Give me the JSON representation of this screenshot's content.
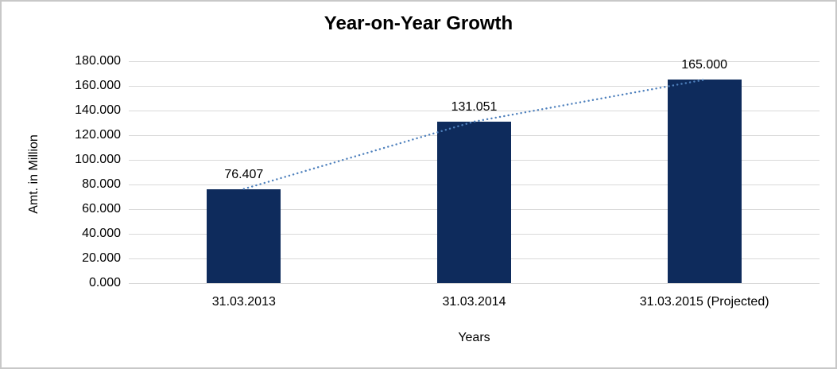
{
  "chart_data": {
    "type": "bar",
    "title": "Year-on-Year Growth",
    "xlabel": "Years",
    "ylabel": "Amt. in Million",
    "categories": [
      "31.03.2013",
      "31.03.2014",
      "31.03.2015 (Projected)"
    ],
    "values": [
      76.407,
      131.051,
      165.0
    ],
    "value_labels": [
      "76.407",
      "131.051",
      "165.000"
    ],
    "ylim": [
      0,
      180
    ],
    "ytick_step": 20,
    "ytick_labels_top_to_bottom": [
      "180.000",
      "160.000",
      "140.000",
      "120.000",
      "100.000",
      "80.000",
      "60.000",
      "40.000",
      "20.000",
      "0.000"
    ],
    "grid": true,
    "legend_position": "none",
    "trendline": {
      "style": "dotted",
      "connects": "bar tops",
      "color": "#4f81bd"
    },
    "colors": {
      "bar_fill": "#0e2b5c",
      "gridline": "#d9d9d9",
      "frame_border": "#c8c8c8",
      "text": "#000000",
      "background": "#ffffff"
    }
  }
}
